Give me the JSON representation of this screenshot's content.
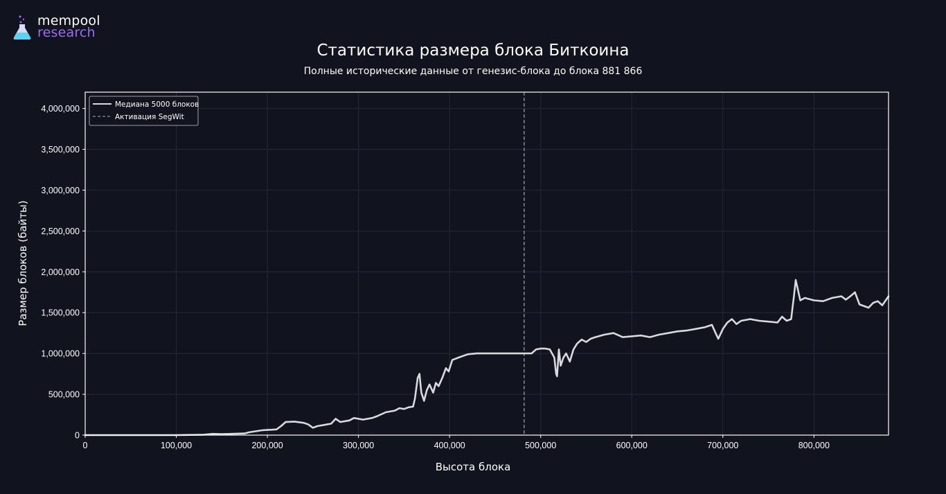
{
  "brand": {
    "line1": "mempool",
    "line2": "research",
    "logo_icon": "flask-icon",
    "accent_color": "#9b6cf2"
  },
  "chart_data": {
    "type": "line",
    "title": "Статистика размера блока Биткоина",
    "subtitle": "Полные исторические данные от генезис-блока до блока 881 866",
    "xlabel": "Высота блока",
    "ylabel": "Размер блоков (байты)",
    "xlim": [
      0,
      881866
    ],
    "ylim": [
      0,
      4200000
    ],
    "x_ticks": [
      0,
      100000,
      200000,
      300000,
      400000,
      500000,
      600000,
      700000,
      800000
    ],
    "x_tick_labels": [
      "0",
      "100,000",
      "200,000",
      "300,000",
      "400,000",
      "500,000",
      "600,000",
      "700,000",
      "800,000"
    ],
    "y_ticks": [
      0,
      500000,
      1000000,
      1500000,
      2000000,
      2500000,
      3000000,
      3500000,
      4000000
    ],
    "y_tick_labels": [
      "0",
      "500,000",
      "1,000,000",
      "1,500,000",
      "2,000,000",
      "2,500,000",
      "3,000,000",
      "3,500,000",
      "4,000,000"
    ],
    "grid": true,
    "legend_position": "top-left",
    "background_color": "#11131f",
    "series": [
      {
        "name": "Медиана 5000 блоков",
        "color": "#d9d9de",
        "style": "solid",
        "x": [
          0,
          100000,
          130000,
          140000,
          150000,
          160000,
          175000,
          180000,
          195000,
          210000,
          215000,
          220000,
          230000,
          240000,
          245000,
          250000,
          255000,
          265000,
          270000,
          275000,
          280000,
          290000,
          295000,
          305000,
          315000,
          320000,
          330000,
          340000,
          345000,
          350000,
          355000,
          360000,
          362000,
          365000,
          367000,
          369000,
          372000,
          375000,
          378000,
          382000,
          385000,
          388000,
          392000,
          396000,
          399000,
          403000,
          410000,
          420000,
          430000,
          440000,
          460000,
          480000,
          485000,
          490000,
          495000,
          500000,
          505000,
          510000,
          515000,
          517000,
          518000,
          520000,
          522000,
          525000,
          528000,
          532000,
          536000,
          540000,
          545000,
          550000,
          555000,
          560000,
          570000,
          580000,
          590000,
          600000,
          610000,
          620000,
          630000,
          640000,
          650000,
          660000,
          670000,
          680000,
          688000,
          692000,
          695000,
          700000,
          705000,
          710000,
          715000,
          720000,
          730000,
          740000,
          750000,
          760000,
          765000,
          770000,
          775000,
          778000,
          780000,
          785000,
          790000,
          800000,
          810000,
          820000,
          830000,
          835000,
          840000,
          845000,
          850000,
          860000,
          865000,
          870000,
          875000,
          881866
        ],
        "y": [
          0,
          0,
          5000,
          15000,
          12000,
          15000,
          20000,
          35000,
          60000,
          70000,
          110000,
          160000,
          165000,
          150000,
          130000,
          90000,
          110000,
          130000,
          140000,
          200000,
          160000,
          180000,
          210000,
          190000,
          210000,
          230000,
          280000,
          300000,
          330000,
          320000,
          340000,
          350000,
          450000,
          700000,
          750000,
          520000,
          420000,
          550000,
          620000,
          520000,
          640000,
          600000,
          700000,
          820000,
          780000,
          920000,
          950000,
          990000,
          1000000,
          1000000,
          1000000,
          1000000,
          1000000,
          1000000,
          1050000,
          1060000,
          1060000,
          1050000,
          950000,
          750000,
          720000,
          1050000,
          850000,
          950000,
          1000000,
          900000,
          1050000,
          1120000,
          1170000,
          1140000,
          1180000,
          1200000,
          1230000,
          1250000,
          1200000,
          1210000,
          1220000,
          1200000,
          1230000,
          1250000,
          1270000,
          1280000,
          1300000,
          1320000,
          1350000,
          1250000,
          1180000,
          1300000,
          1380000,
          1420000,
          1360000,
          1400000,
          1420000,
          1400000,
          1390000,
          1380000,
          1450000,
          1400000,
          1420000,
          1700000,
          1900000,
          1650000,
          1680000,
          1650000,
          1640000,
          1680000,
          1700000,
          1660000,
          1700000,
          1750000,
          1600000,
          1560000,
          1620000,
          1640000,
          1590000,
          1700000
        ]
      }
    ],
    "annotations": [
      {
        "name": "Активация SegWit",
        "x": 481824,
        "color": "#7b7f8e",
        "style": "dashed"
      }
    ]
  }
}
